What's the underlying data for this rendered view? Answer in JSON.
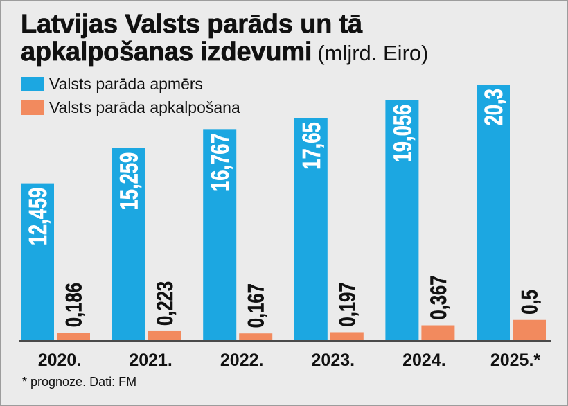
{
  "chart_data": {
    "type": "bar",
    "title": [
      "Latvijas Valsts parāds un tā",
      "apkalpošanas izdevumi"
    ],
    "unit": "(mljrd. Eiro)",
    "categories": [
      "2020.",
      "2021.",
      "2022.",
      "2023.",
      "2024.",
      "2025.*"
    ],
    "series": [
      {
        "name": "Valsts parāda apmērs",
        "values": [
          12.459,
          15.259,
          16.767,
          17.65,
          19.056,
          20.3
        ],
        "color": "#1ca7e1"
      },
      {
        "name": "Valsts parāda apkalpošana",
        "values": [
          0.186,
          0.223,
          0.167,
          0.197,
          0.367,
          0.5
        ],
        "color": "#f28a5e"
      }
    ],
    "legend": "top-left",
    "grid": false,
    "note": "* prognoze. Dati: FM"
  },
  "colors": {
    "background": "#ebebeb",
    "text": "#111111"
  }
}
